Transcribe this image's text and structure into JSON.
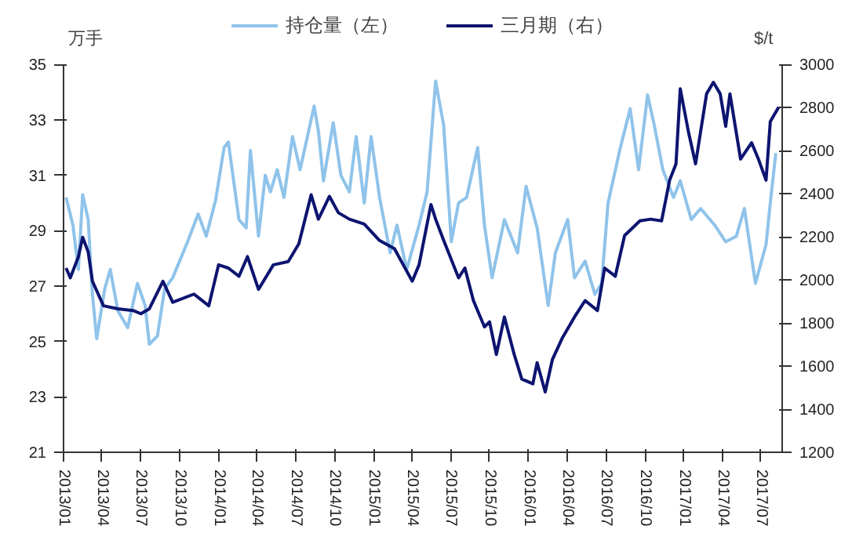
{
  "chart_data": {
    "type": "line",
    "ylabel": "万手",
    "y2label": "$/t",
    "legend": "top",
    "grid": false,
    "marker": "none",
    "line_style": "solid",
    "xlim": [
      "2013-01-01",
      "2017-08-20"
    ],
    "xticks": [
      {
        "value": "2013-01",
        "label": "2013/01"
      },
      {
        "value": "2013-04",
        "label": "2013/04"
      },
      {
        "value": "2013-07",
        "label": "2013/07"
      },
      {
        "value": "2013-10",
        "label": "2013/10"
      },
      {
        "value": "2014-01",
        "label": "2014/01"
      },
      {
        "value": "2014-04",
        "label": "2014/04"
      },
      {
        "value": "2014-07",
        "label": "2014/07"
      },
      {
        "value": "2014-10",
        "label": "2014/10"
      },
      {
        "value": "2015-01",
        "label": "2015/01"
      },
      {
        "value": "2015-04",
        "label": "2015/04"
      },
      {
        "value": "2015-07",
        "label": "2015/07"
      },
      {
        "value": "2015-10",
        "label": "2015/10"
      },
      {
        "value": "2016-01",
        "label": "2016/01"
      },
      {
        "value": "2016-04",
        "label": "2016/04"
      },
      {
        "value": "2016-07",
        "label": "2016/07"
      },
      {
        "value": "2016-10",
        "label": "2016/10"
      },
      {
        "value": "2017-01",
        "label": "2017/01"
      },
      {
        "value": "2017-04",
        "label": "2017/04"
      },
      {
        "value": "2017-07",
        "label": "2017/07"
      }
    ],
    "ylim": [
      21,
      35
    ],
    "yticks": [
      21,
      23,
      25,
      27,
      29,
      31,
      33,
      35
    ],
    "y2lim": [
      1200,
      3000
    ],
    "y2ticks": [
      1200,
      1400,
      1600,
      1800,
      2000,
      2200,
      2400,
      2600,
      2800,
      3000
    ],
    "series": [
      {
        "name": "持仓量（左）",
        "color": "#8fc3ea",
        "x": [
          "2013-01-07",
          "2013-01-23",
          "2013-02-05",
          "2013-02-15",
          "2013-02-28",
          "2013-03-10",
          "2013-03-20",
          "2013-04-08",
          "2013-04-21",
          "2013-05-09",
          "2013-06-01",
          "2013-06-24",
          "2013-07-12",
          "2013-07-22",
          "2013-08-10",
          "2013-08-27",
          "2013-09-15",
          "2013-10-20",
          "2013-11-14",
          "2013-12-03",
          "2013-12-25",
          "2014-01-14",
          "2014-01-24",
          "2014-02-18",
          "2014-03-07",
          "2014-03-17",
          "2014-04-05",
          "2014-04-21",
          "2014-05-03",
          "2014-05-19",
          "2014-06-04",
          "2014-06-24",
          "2014-07-12",
          "2014-08-14",
          "2014-08-24",
          "2014-09-05",
          "2014-09-28",
          "2014-10-16",
          "2014-11-05",
          "2014-11-21",
          "2014-12-10",
          "2014-12-26",
          "2015-01-15",
          "2015-02-09",
          "2015-02-25",
          "2015-03-20",
          "2015-04-18",
          "2015-05-07",
          "2015-05-27",
          "2015-06-15",
          "2015-07-03",
          "2015-07-20",
          "2015-08-08",
          "2015-09-03",
          "2015-09-19",
          "2015-10-07",
          "2015-11-05",
          "2015-12-06",
          "2015-12-26",
          "2016-01-21",
          "2016-02-16",
          "2016-03-04",
          "2016-04-02",
          "2016-04-18",
          "2016-05-13",
          "2016-06-05",
          "2016-06-21",
          "2016-07-06",
          "2016-08-04",
          "2016-08-27",
          "2016-09-16",
          "2016-10-07",
          "2016-10-23",
          "2016-11-12",
          "2016-12-07",
          "2016-12-23",
          "2017-01-18",
          "2017-02-09",
          "2017-03-14",
          "2017-04-09",
          "2017-05-04",
          "2017-05-23",
          "2017-06-18",
          "2017-07-13",
          "2017-07-23",
          "2017-08-05"
        ],
        "values": [
          30.2,
          29.2,
          27.6,
          30.3,
          29.4,
          26.7,
          25.1,
          26.9,
          27.6,
          26.1,
          25.5,
          27.1,
          26.3,
          24.9,
          25.2,
          26.9,
          27.3,
          28.6,
          29.6,
          28.8,
          30.1,
          32.0,
          32.2,
          29.4,
          29.1,
          31.9,
          28.8,
          31.0,
          30.4,
          31.2,
          30.2,
          32.4,
          31.2,
          33.5,
          32.6,
          30.8,
          32.9,
          31.0,
          30.4,
          32.4,
          30.0,
          32.4,
          30.2,
          28.2,
          29.2,
          27.6,
          29.2,
          30.4,
          34.4,
          32.8,
          28.6,
          30.0,
          30.2,
          32.0,
          29.2,
          27.3,
          29.4,
          28.2,
          30.6,
          29.1,
          26.3,
          28.2,
          29.4,
          27.3,
          27.9,
          26.7,
          27.1,
          30.0,
          32.0,
          33.4,
          31.2,
          33.9,
          32.8,
          31.2,
          30.2,
          30.8,
          29.4,
          29.8,
          29.2,
          28.6,
          28.8,
          29.8,
          27.1,
          28.5,
          30.0,
          31.8
        ]
      },
      {
        "name": "三月期（右）",
        "color": "#0d1470",
        "axis": "y2",
        "x": [
          "2013-01-07",
          "2013-01-17",
          "2013-02-05",
          "2013-02-15",
          "2013-02-28",
          "2013-03-10",
          "2013-04-05",
          "2013-05-09",
          "2013-06-14",
          "2013-07-02",
          "2013-07-22",
          "2013-08-23",
          "2013-09-15",
          "2013-11-04",
          "2013-12-09",
          "2014-01-01",
          "2014-01-24",
          "2014-02-18",
          "2014-03-10",
          "2014-04-05",
          "2014-05-10",
          "2014-06-14",
          "2014-07-09",
          "2014-08-07",
          "2014-08-24",
          "2014-09-19",
          "2014-10-10",
          "2014-11-05",
          "2014-12-10",
          "2015-01-15",
          "2015-02-19",
          "2015-04-02",
          "2015-04-18",
          "2015-05-16",
          "2015-05-27",
          "2015-06-15",
          "2015-07-20",
          "2015-08-04",
          "2015-08-24",
          "2015-09-19",
          "2015-10-01",
          "2015-10-17",
          "2015-11-05",
          "2015-11-28",
          "2015-12-16",
          "2016-01-11",
          "2016-01-21",
          "2016-02-09",
          "2016-02-26",
          "2016-03-20",
          "2016-04-18",
          "2016-05-13",
          "2016-06-11",
          "2016-06-28",
          "2016-07-23",
          "2016-08-14",
          "2016-09-19",
          "2016-10-14",
          "2016-11-09",
          "2016-11-28",
          "2016-12-13",
          "2016-12-23",
          "2017-01-11",
          "2017-01-28",
          "2017-02-23",
          "2017-03-11",
          "2017-03-27",
          "2017-04-09",
          "2017-04-19",
          "2017-05-14",
          "2017-06-09",
          "2017-06-25",
          "2017-07-13",
          "2017-07-23",
          "2017-08-12"
        ],
        "values": [
          2055,
          2010,
          2108,
          2198,
          2130,
          1994,
          1880,
          1866,
          1858,
          1843,
          1866,
          1994,
          1896,
          1934,
          1880,
          2070,
          2055,
          2017,
          2108,
          1956,
          2070,
          2085,
          2168,
          2395,
          2282,
          2388,
          2312,
          2282,
          2259,
          2183,
          2145,
          1994,
          2070,
          2350,
          2282,
          2183,
          2010,
          2055,
          1904,
          1782,
          1805,
          1654,
          1828,
          1654,
          1540,
          1518,
          1616,
          1480,
          1631,
          1729,
          1828,
          1904,
          1858,
          2055,
          2017,
          2206,
          2274,
          2282,
          2274,
          2463,
          2539,
          2887,
          2690,
          2539,
          2864,
          2917,
          2864,
          2713,
          2864,
          2561,
          2637,
          2561,
          2463,
          2735,
          2803
        ]
      }
    ]
  }
}
